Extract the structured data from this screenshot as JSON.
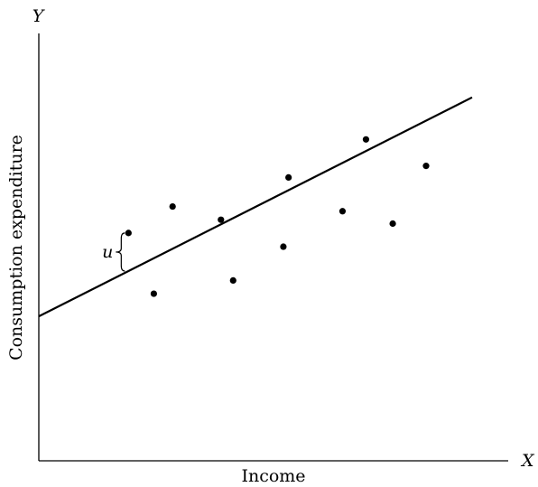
{
  "chart_data": {
    "type": "scatter",
    "title": "",
    "xlabel": "Income",
    "ylabel": "Consumption expenditure",
    "x_axis_letter": "X",
    "y_axis_letter": "Y",
    "xlim": [
      0,
      100
    ],
    "ylim": [
      0,
      100
    ],
    "grid": false,
    "legend": "none",
    "points": [
      {
        "x": 19.1,
        "y": 53.3
      },
      {
        "x": 24.5,
        "y": 39.1
      },
      {
        "x": 28.5,
        "y": 59.5
      },
      {
        "x": 38.8,
        "y": 56.4
      },
      {
        "x": 41.4,
        "y": 42.2
      },
      {
        "x": 52.1,
        "y": 50.1
      },
      {
        "x": 53.2,
        "y": 66.3
      },
      {
        "x": 64.7,
        "y": 58.4
      },
      {
        "x": 69.7,
        "y": 75.2
      },
      {
        "x": 75.4,
        "y": 55.5
      },
      {
        "x": 82.5,
        "y": 69.0
      }
    ],
    "regression_line": {
      "intercept": 33.8,
      "slope": 0.555
    },
    "residual": {
      "label": "u",
      "point_index": 0
    }
  }
}
